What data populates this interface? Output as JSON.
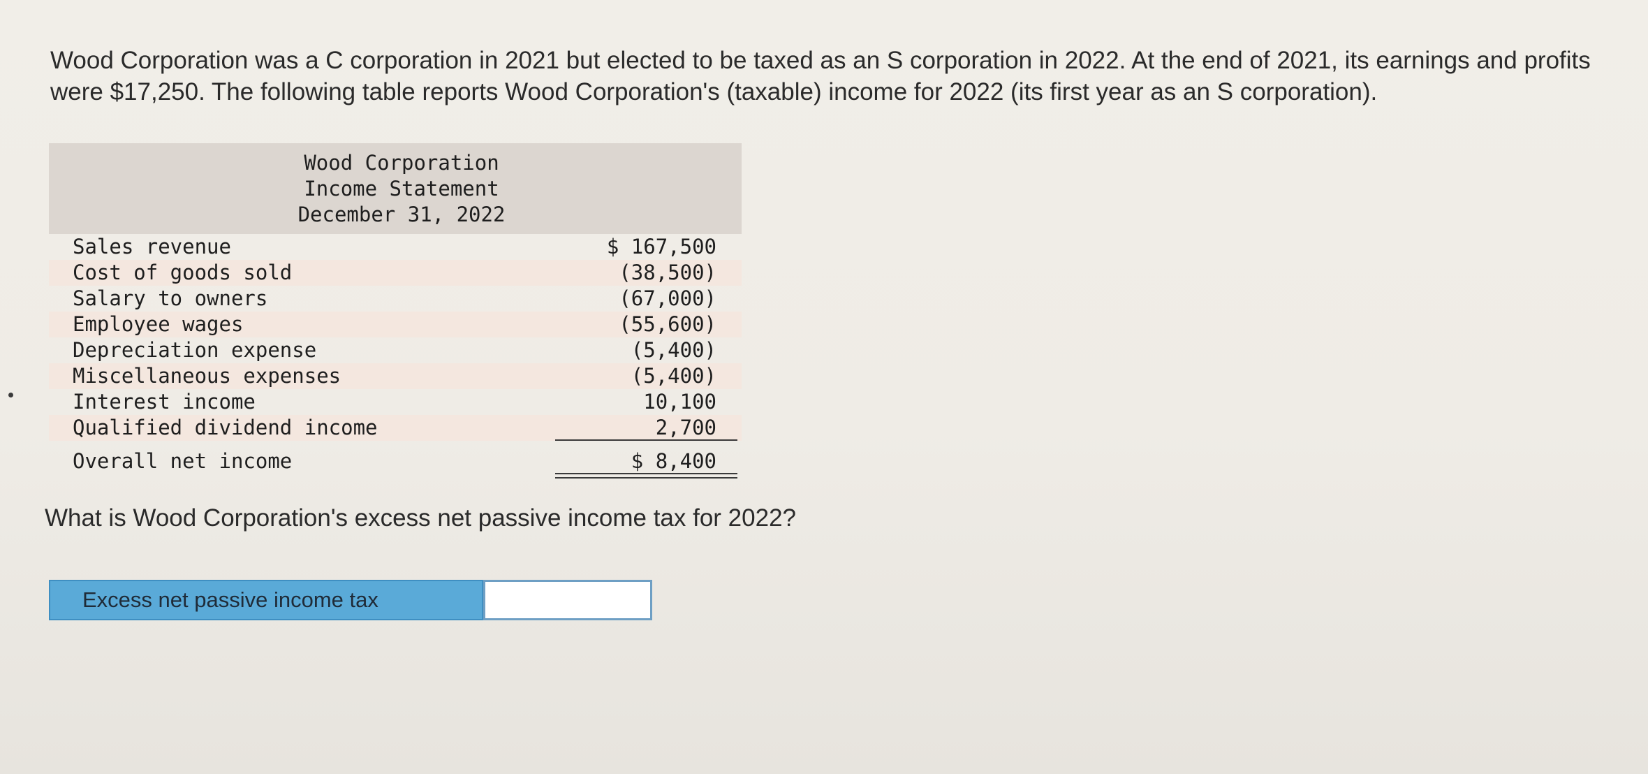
{
  "intro_text": "Wood Corporation was a C corporation in 2021 but elected to be taxed as an S corporation in 2022. At the end of 2021, its earnings and profits were $17,250. The following table reports Wood Corporation's (taxable) income for 2022 (its first year as an S corporation).",
  "statement": {
    "company": "Wood Corporation",
    "title": "Income Statement",
    "date": "December 31, 2022",
    "rows": [
      {
        "label": "Sales revenue",
        "amount": "$ 167,500"
      },
      {
        "label": "Cost of goods sold",
        "amount": "(38,500)"
      },
      {
        "label": "Salary to owners",
        "amount": "(67,000)"
      },
      {
        "label": "Employee wages",
        "amount": "(55,600)"
      },
      {
        "label": "Depreciation expense",
        "amount": "(5,400)"
      },
      {
        "label": "Miscellaneous expenses",
        "amount": "(5,400)"
      },
      {
        "label": "Interest income",
        "amount": "10,100"
      },
      {
        "label": "Qualified dividend income",
        "amount": "2,700"
      }
    ],
    "total": {
      "label": "Overall net income",
      "amount": "$ 8,400"
    }
  },
  "question": "What is Wood Corporation's excess net passive income tax for 2022?",
  "answer": {
    "label": "Excess net passive income tax",
    "value": ""
  }
}
